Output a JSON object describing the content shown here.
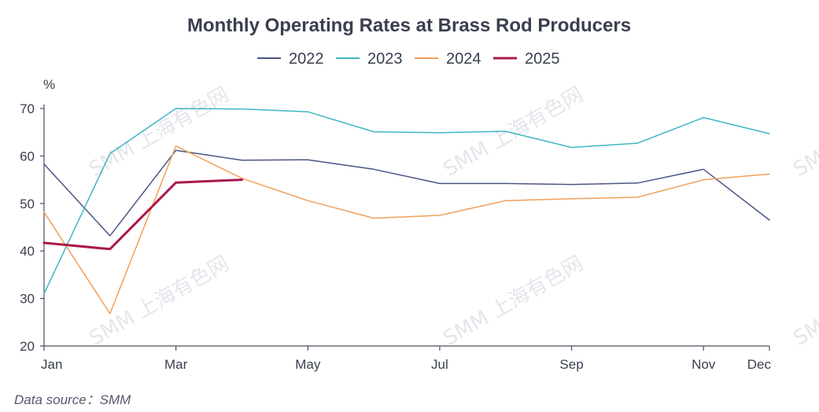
{
  "chart_data": {
    "type": "line",
    "title": "Monthly Operating Rates at Brass Rod Producers",
    "ylabel": "%",
    "xlabel": "",
    "ylim": [
      20,
      70
    ],
    "yticks": [
      20,
      30,
      40,
      50,
      60,
      70
    ],
    "months": [
      "Jan",
      "Feb",
      "Mar",
      "Apr",
      "May",
      "Jun",
      "Jul",
      "Aug",
      "Sep",
      "Oct",
      "Nov",
      "Dec"
    ],
    "x_tick_labels": [
      {
        "month": "Jan",
        "label": "Jan"
      },
      {
        "month": "Mar",
        "label": "Mar"
      },
      {
        "month": "May",
        "label": "May"
      },
      {
        "month": "Jul",
        "label": "Jul"
      },
      {
        "month": "Sep",
        "label": "Sep"
      },
      {
        "month": "Nov",
        "label": "Nov"
      },
      {
        "month": "Dec",
        "label": "Dec"
      }
    ],
    "legend_position": "top-center",
    "series": [
      {
        "name": "2022",
        "color": "#4a5584",
        "width": 1.5,
        "values": [
          58.3,
          43.2,
          61.2,
          59.1,
          59.2,
          57.2,
          54.2,
          54.2,
          54.0,
          54.3,
          57.2,
          46.5
        ]
      },
      {
        "name": "2023",
        "color": "#3eb6c3",
        "width": 1.5,
        "values": [
          31.0,
          60.5,
          70.0,
          69.9,
          69.3,
          65.1,
          64.9,
          65.2,
          61.8,
          62.7,
          68.1,
          64.7
        ]
      },
      {
        "name": "2024",
        "color": "#f0a05a",
        "width": 1.5,
        "values": [
          48.2,
          26.8,
          62.1,
          55.3,
          50.6,
          46.9,
          47.5,
          50.6,
          51.0,
          51.3,
          55.0,
          56.2
        ]
      },
      {
        "name": "2025",
        "color": "#a8194c",
        "width": 3,
        "values": [
          41.7,
          40.4,
          54.4,
          55.0
        ]
      }
    ]
  },
  "footer": {
    "source": "Data source：SMM"
  },
  "watermark": {
    "text": "SMM 上海有色网"
  }
}
